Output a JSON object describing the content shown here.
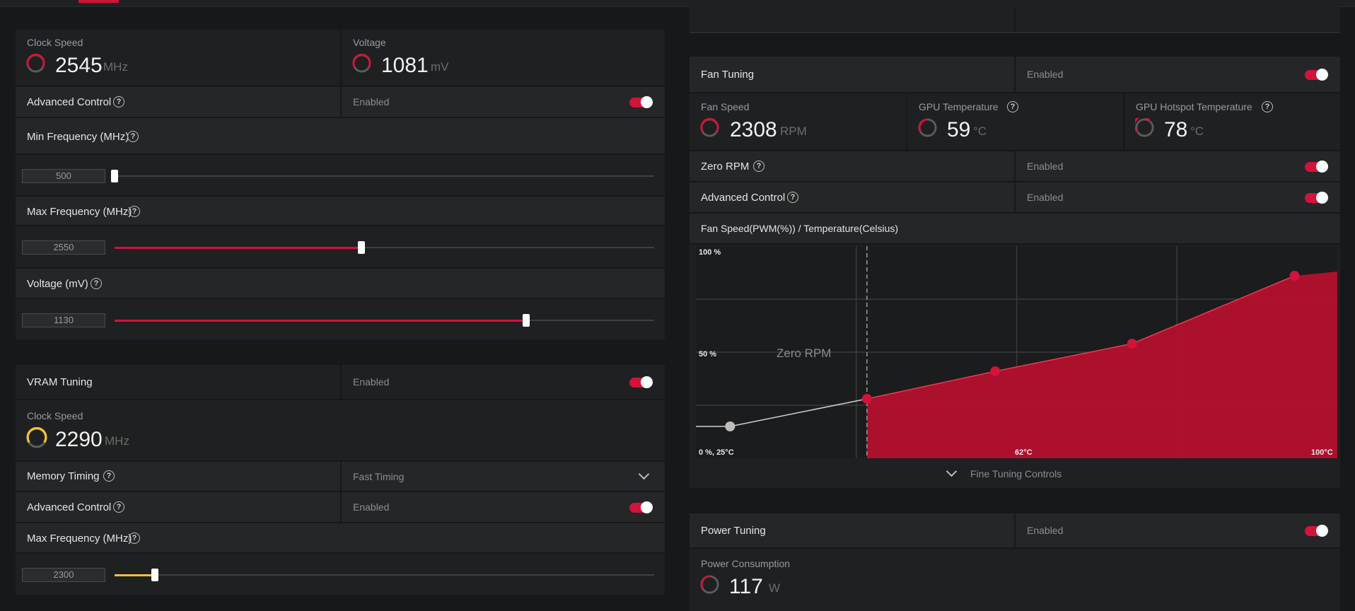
{
  "gpu": {
    "clock_label": "Clock Speed",
    "clock_value": "2545",
    "clock_unit": "MHz",
    "voltage_label": "Voltage",
    "voltage_value": "1081",
    "voltage_unit": "mV",
    "adv_label": "Advanced Control",
    "adv_status": "Enabled",
    "min_freq_label": "Min Frequency (MHz)",
    "min_freq_value": "500",
    "min_freq_fraction": 0.0,
    "max_freq_label": "Max Frequency (MHz)",
    "max_freq_value": "2550",
    "max_freq_fraction": 0.457,
    "voltage_mv_label": "Voltage (mV)",
    "voltage_mv_value": "1130",
    "voltage_mv_fraction": 0.763
  },
  "vram": {
    "title": "VRAM Tuning",
    "status": "Enabled",
    "clock_label": "Clock Speed",
    "clock_value": "2290",
    "clock_unit": "MHz",
    "timing_label": "Memory Timing",
    "timing_value": "Fast Timing",
    "adv_label": "Advanced Control",
    "adv_status": "Enabled",
    "max_freq_label": "Max Frequency (MHz)",
    "max_freq_value": "2300",
    "max_freq_fraction": 0.075
  },
  "fan": {
    "title": "Fan Tuning",
    "status": "Enabled",
    "speed_label": "Fan Speed",
    "speed_value": "2308",
    "speed_unit": "RPM",
    "temp_label": "GPU Temperature",
    "temp_value": "59",
    "temp_unit": "°C",
    "hotspot_label": "GPU Hotspot Temperature",
    "hotspot_value": "78",
    "hotspot_unit": "°C",
    "zero_rpm_label": "Zero RPM",
    "zero_rpm_status": "Enabled",
    "adv_label": "Advanced Control",
    "adv_status": "Enabled",
    "curve_title": "Fan Speed(PWM(%)) / Temperature(Celsius)",
    "fine_tuning": "Fine Tuning Controls"
  },
  "chart_data": {
    "type": "area",
    "title": "Fan Speed(PWM(%)) / Temperature(Celsius)",
    "y_tick_labels": [
      "100 %",
      "50 %"
    ],
    "x_tick_labels": [
      "0 %, 25°C",
      "62°C",
      "100°C"
    ],
    "annotation": "Zero RPM",
    "xlim": [
      25,
      100
    ],
    "ylim": [
      0,
      100
    ],
    "zero_rpm_point": {
      "x": 29,
      "y": 15
    },
    "series": [
      {
        "x": [
          45,
          60,
          76,
          95
        ],
        "y": [
          28,
          41,
          54,
          86
        ]
      }
    ],
    "colors": {
      "fill": "#b3102e",
      "point": "#d0143a",
      "line": "#e04058",
      "zero_rpm_line": "#cfcfcf"
    }
  },
  "power": {
    "title": "Power Tuning",
    "status": "Enabled",
    "consumption_label": "Power Consumption",
    "consumption_value": "117",
    "consumption_unit": "W"
  },
  "colors": {
    "accent": "#d0143a",
    "vram_accent": "#f2c232",
    "background": "#161819",
    "panel": "#1f2021"
  }
}
